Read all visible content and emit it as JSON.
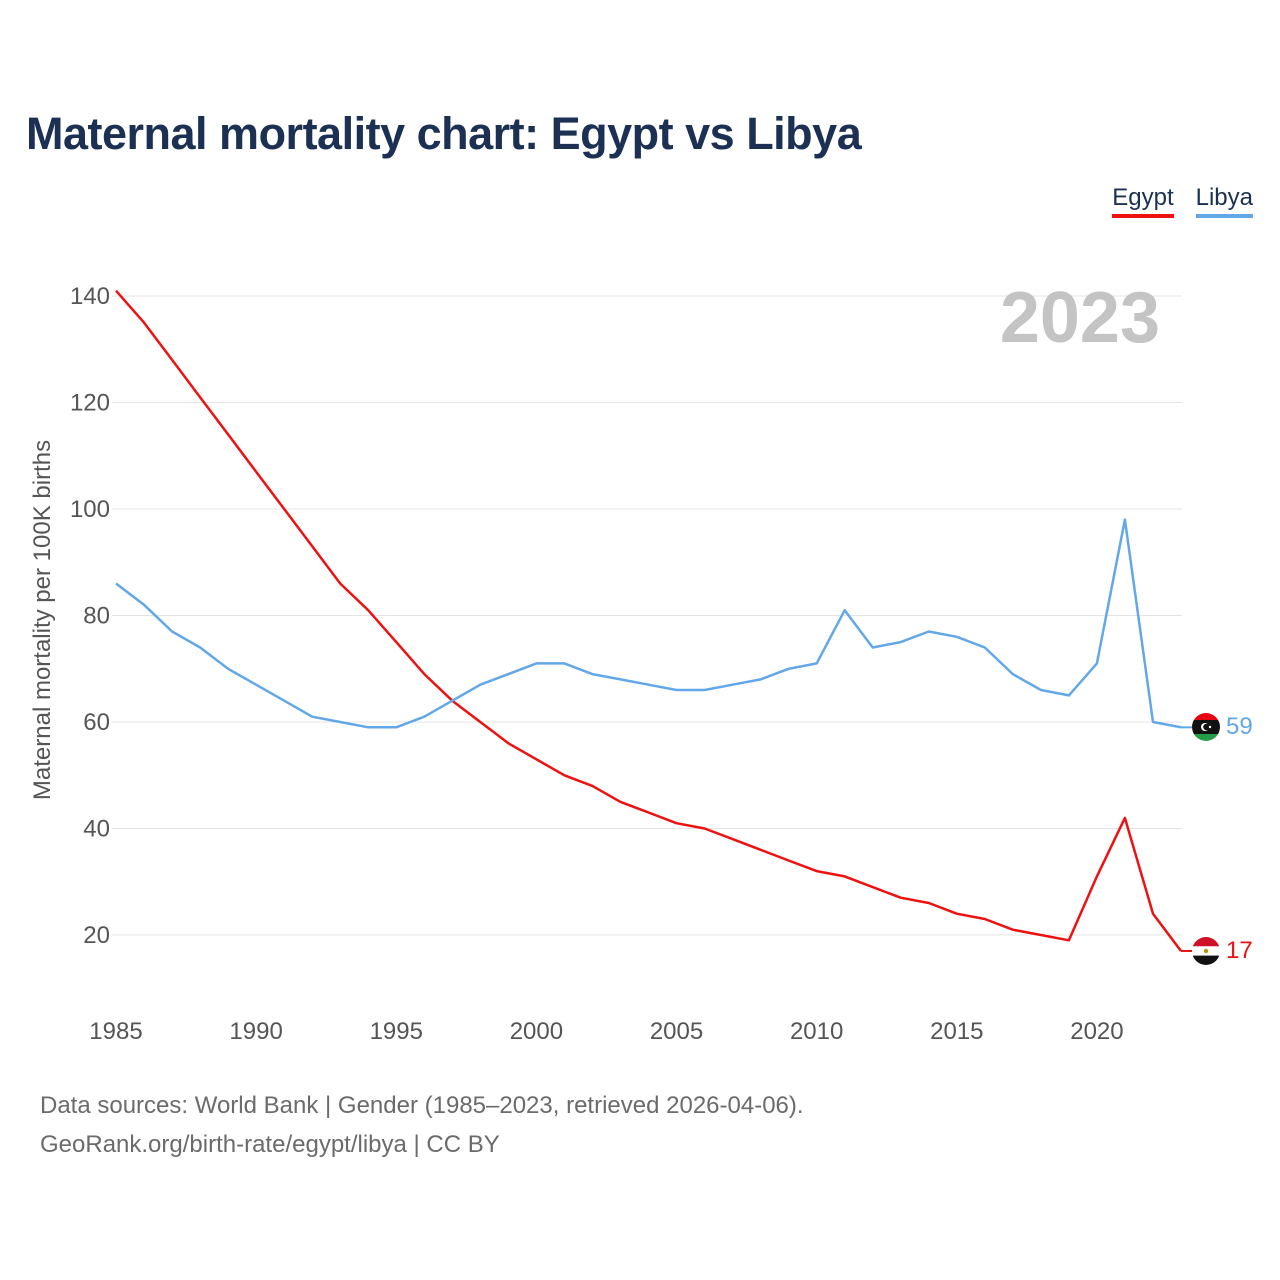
{
  "title": "Maternal mortality chart: Egypt vs Libya",
  "legend": [
    {
      "label": "Egypt",
      "color": "#ee1111"
    },
    {
      "label": "Libya",
      "color": "#62a8e8"
    }
  ],
  "year_badge": "2023",
  "sources": {
    "line1": "Data sources: World Bank | Gender (1985–2023, retrieved 2026-04-06).",
    "line2": "GeoRank.org/birth-rate/egypt/libya | CC BY"
  },
  "chart_data": {
    "type": "line",
    "title": "Maternal mortality chart: Egypt vs Libya",
    "xlabel": "",
    "ylabel": "Maternal mortality per 100K births",
    "xlim": [
      1985,
      2023
    ],
    "ylim": [
      10,
      142
    ],
    "xticks": [
      1985,
      1990,
      1995,
      2000,
      2005,
      2010,
      2015,
      2020
    ],
    "yticks": [
      20,
      40,
      60,
      80,
      100,
      120,
      140
    ],
    "grid": true,
    "legend_position": "top-right",
    "x": [
      1985,
      1986,
      1987,
      1988,
      1989,
      1990,
      1991,
      1992,
      1993,
      1994,
      1995,
      1996,
      1997,
      1998,
      1999,
      2000,
      2001,
      2002,
      2003,
      2004,
      2005,
      2006,
      2007,
      2008,
      2009,
      2010,
      2011,
      2012,
      2013,
      2014,
      2015,
      2016,
      2017,
      2018,
      2019,
      2020,
      2021,
      2022,
      2023
    ],
    "series": [
      {
        "name": "Egypt",
        "color": "#ee1111",
        "end_label": "17",
        "values": [
          141,
          135,
          128,
          121,
          114,
          107,
          100,
          93,
          86,
          81,
          75,
          69,
          64,
          60,
          56,
          53,
          50,
          48,
          45,
          43,
          41,
          40,
          38,
          36,
          34,
          32,
          31,
          29,
          27,
          26,
          24,
          23,
          21,
          20,
          19,
          31,
          42,
          24,
          17
        ]
      },
      {
        "name": "Libya",
        "color": "#62a8e8",
        "end_label": "59",
        "values": [
          86,
          82,
          77,
          74,
          70,
          67,
          64,
          61,
          60,
          59,
          59,
          61,
          64,
          67,
          69,
          71,
          71,
          69,
          68,
          67,
          66,
          66,
          67,
          68,
          70,
          71,
          81,
          74,
          75,
          77,
          76,
          74,
          69,
          66,
          65,
          71,
          98,
          60,
          59
        ]
      }
    ]
  }
}
